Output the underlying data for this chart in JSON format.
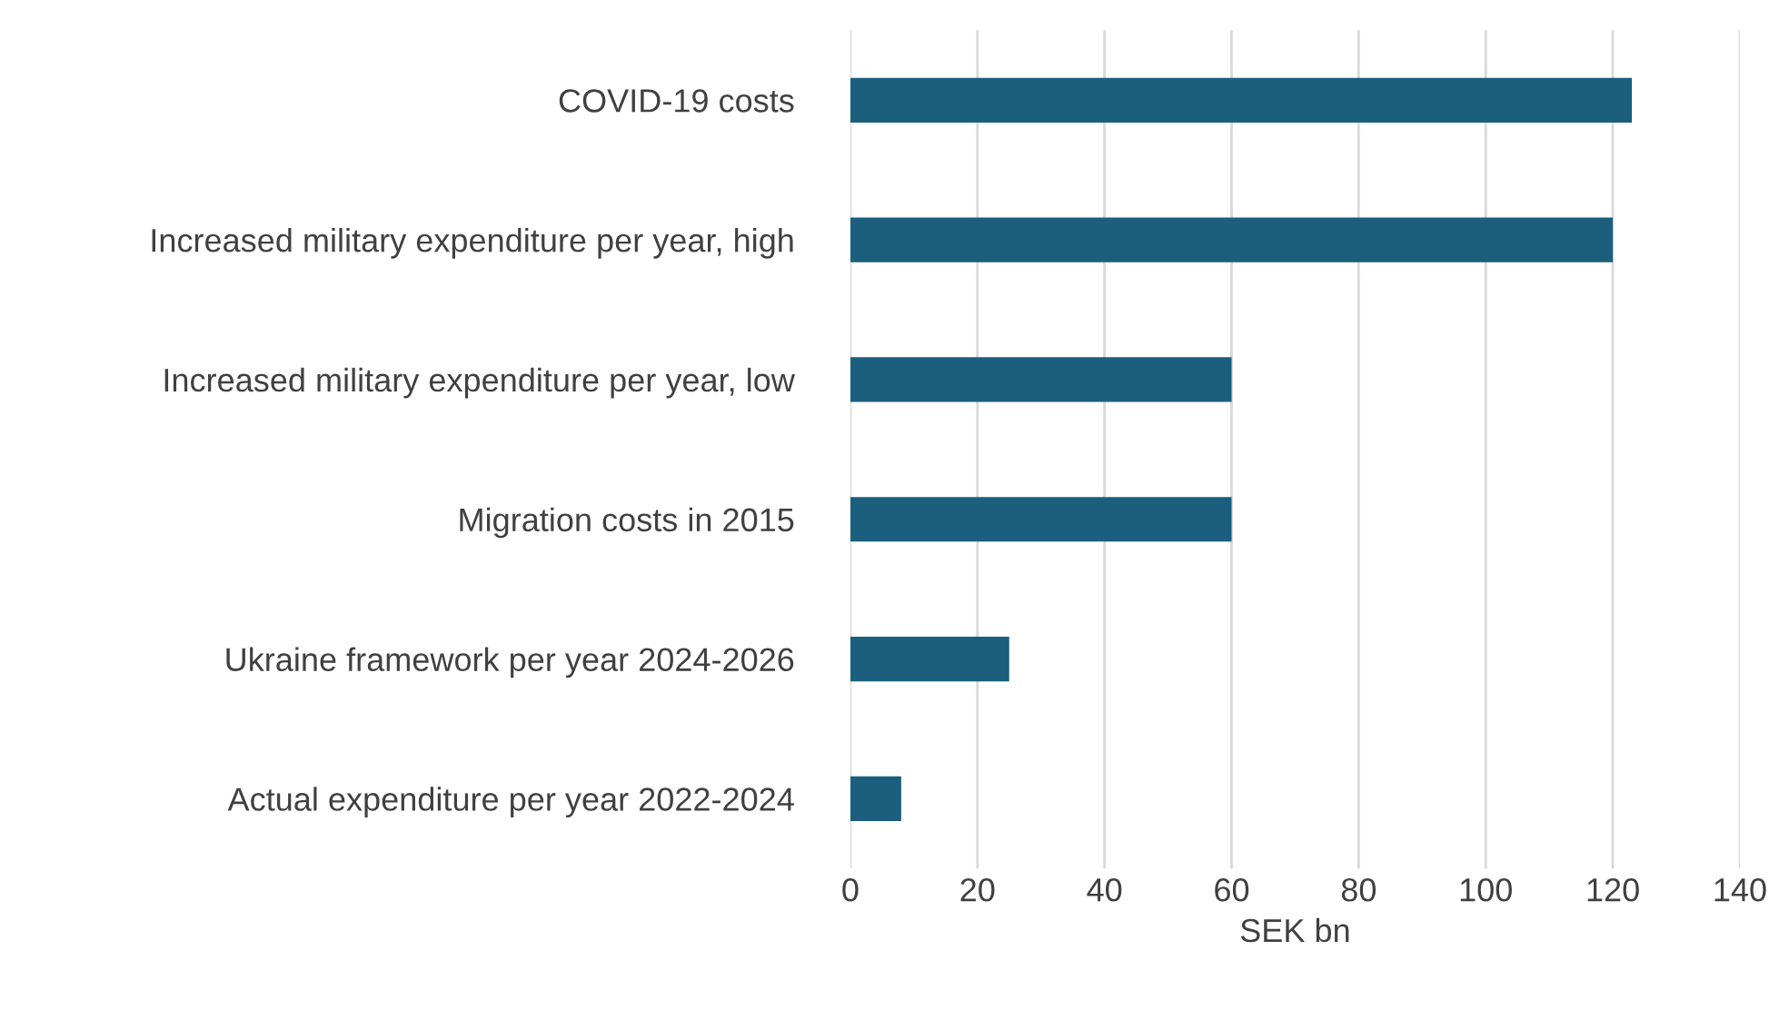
{
  "chart_data": {
    "type": "bar",
    "orientation": "horizontal",
    "xlabel": "SEK bn",
    "categories": [
      "COVID-19 costs",
      "Increased military expenditure per year, high",
      "Increased military expenditure per year, low",
      "Migration costs in 2015",
      "Ukraine framework per year 2024-2026",
      "Actual expenditure per year 2022-2024"
    ],
    "values": [
      123,
      120,
      60,
      60,
      25,
      8
    ],
    "color": "#1b5e7e",
    "xlim": [
      0,
      140
    ],
    "xticks": [
      0,
      20,
      40,
      60,
      80,
      100,
      120,
      140
    ],
    "grid": "x",
    "legend": false
  }
}
